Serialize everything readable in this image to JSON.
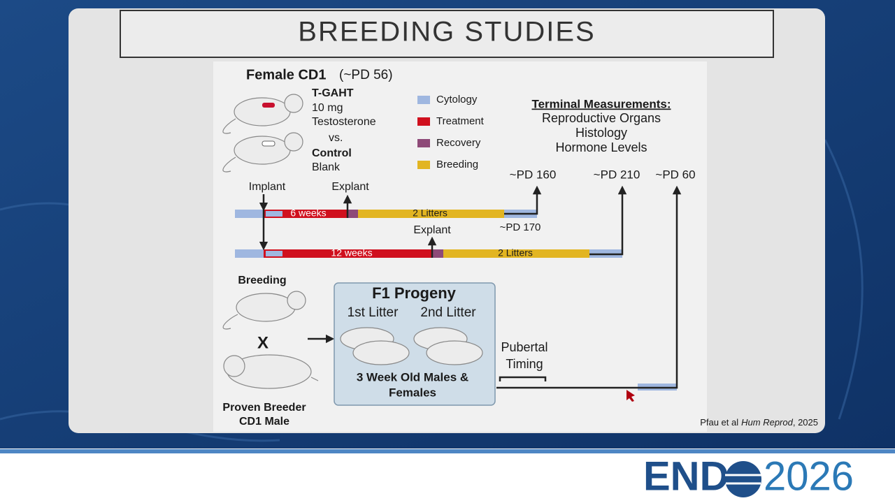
{
  "header": {
    "title": "BREEDING STUDIES"
  },
  "diagram": {
    "female": {
      "label": "Female CD1",
      "age": "(~PD 56)"
    },
    "groups": {
      "treated": "T-GAHT",
      "dose": "10 mg",
      "drug": "Testosterone",
      "versus": "vs.",
      "control": "Control",
      "control_detail": "Blank"
    },
    "legend": [
      {
        "label": "Cytology",
        "color": "#9fb7e0"
      },
      {
        "label": "Treatment",
        "color": "#d0101e"
      },
      {
        "label": "Recovery",
        "color": "#8e4a78"
      },
      {
        "label": "Breeding",
        "color": "#e2b522"
      }
    ],
    "terminal": {
      "heading": "Terminal Measurements:",
      "items": [
        "Reproductive Organs",
        "Histology",
        "Hormone Levels"
      ]
    },
    "timepoints": [
      "~PD 160",
      "~PD 210",
      "~PD 60",
      "~PD 170"
    ],
    "markers": {
      "implant": "Implant",
      "explant_1": "Explant",
      "explant_2": "Explant"
    },
    "bars": {
      "row1_treatment": "6 weeks",
      "row1_breeding": "2 Litters",
      "row2_treatment": "12 weeks",
      "row2_breeding": "2 Litters"
    },
    "breeding": {
      "label": "Breeding",
      "cross": "X",
      "male_line1": "Proven Breeder",
      "male_line2": "CD1 Male"
    },
    "progeny": {
      "title": "F1 Progeny",
      "litter1": "1st Litter",
      "litter2": "2nd Litter",
      "desc_line1": "3 Week Old Males &",
      "desc_line2": "Females"
    },
    "pubertal": {
      "line1": "Pubertal",
      "line2": "Timing"
    },
    "citation": {
      "authors": "Pfau et al",
      "journal": "Hum Reprod",
      "year": ", 2025"
    }
  },
  "footer": {
    "logo_left": "END",
    "logo_right": "2026"
  }
}
